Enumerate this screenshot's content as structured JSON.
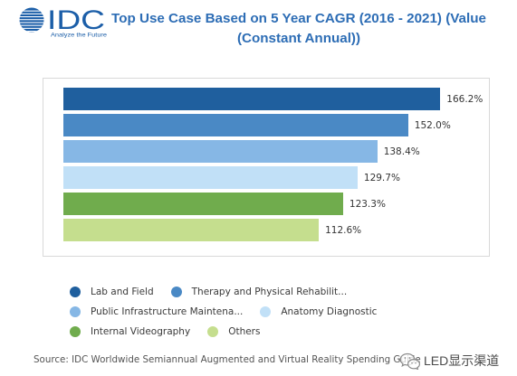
{
  "logo": {
    "name": "IDC",
    "tagline": "Analyze the Future",
    "icon": "globe-icon",
    "color": "#1b5ea8"
  },
  "chart_data": {
    "type": "bar",
    "orientation": "horizontal",
    "title": "Top Use Case Based on 5 Year CAGR (2016 - 2021) (Value (Constant Annual))",
    "title_color": "#2d6db5",
    "categories": [
      "Lab and Field",
      "Therapy and Physical Rehabilit...",
      "Public Infrastructure Maintena...",
      "Anatomy Diagnostic",
      "Internal Videography",
      "Others"
    ],
    "values": [
      166.2,
      152.0,
      138.4,
      129.7,
      123.3,
      112.6
    ],
    "data_labels": [
      "166.2%",
      "152.0%",
      "138.4%",
      "129.7%",
      "123.3%",
      "112.6%"
    ],
    "colors": [
      "#1f5f9e",
      "#4a89c5",
      "#86b7e5",
      "#c1e0f7",
      "#70ac4d",
      "#c5de8e"
    ],
    "xlabel": "",
    "ylabel": "",
    "axes_visible": false,
    "grid": false,
    "legend": {
      "placement": "bottom"
    }
  },
  "source": "Source: IDC Worldwide Semiannual Augmented and Virtual Reality Spending Guide",
  "watermark": {
    "icon": "wechat-icon",
    "text": "LED显示渠道"
  }
}
